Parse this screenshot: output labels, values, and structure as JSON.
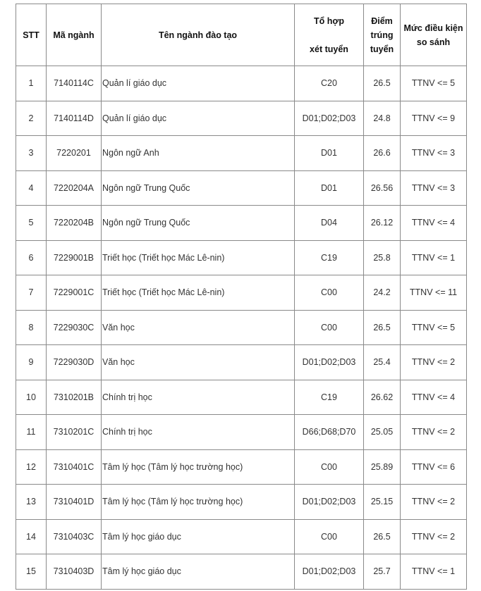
{
  "table": {
    "headers": [
      "STT",
      "Mã ngành",
      "Tên ngành đào tạo",
      "Tổ hợp xét tuyển",
      "Điểm trúng tuyển",
      "Mức điều kiện so sánh"
    ],
    "header_lines": {
      "to_hop": [
        "Tổ hợp",
        "xét tuyển"
      ],
      "diem": [
        "Điểm",
        "trúng",
        "tuyển"
      ],
      "muc": [
        "Mức điều kiện",
        "so sánh"
      ]
    },
    "rows": [
      [
        "1",
        "7140114C",
        "Quản lí giáo dục",
        "C20",
        "26.5",
        "TTNV <= 5"
      ],
      [
        "2",
        "7140114D",
        "Quản lí giáo dục",
        "D01;D02;D03",
        "24.8",
        "TTNV <= 9"
      ],
      [
        "3",
        "7220201",
        "Ngôn ngữ Anh",
        "D01",
        "26.6",
        "TTNV <= 3"
      ],
      [
        "4",
        "7220204A",
        "Ngôn ngữ Trung Quốc",
        "D01",
        "26.56",
        "TTNV <= 3"
      ],
      [
        "5",
        "7220204B",
        "Ngôn ngữ Trung Quốc",
        "D04",
        "26.12",
        "TTNV <= 4"
      ],
      [
        "6",
        "7229001B",
        "Triết học (Triết học Mác Lê-nin)",
        "C19",
        "25.8",
        "TTNV <= 1"
      ],
      [
        "7",
        "7229001C",
        "Triết học (Triết học Mác Lê-nin)",
        "C00",
        "24.2",
        "TTNV <= 11"
      ],
      [
        "8",
        "7229030C",
        "Văn học",
        "C00",
        "26.5",
        "TTNV <= 5"
      ],
      [
        "9",
        "7229030D",
        "Văn học",
        "D01;D02;D03",
        "25.4",
        "TTNV <= 2"
      ],
      [
        "10",
        "7310201B",
        "Chính trị học",
        "C19",
        "26.62",
        "TTNV <= 4"
      ],
      [
        "11",
        "7310201C",
        "Chính trị học",
        "D66;D68;D70",
        "25.05",
        "TTNV <= 2"
      ],
      [
        "12",
        "7310401C",
        "Tâm lý học (Tâm lý học trường học)",
        "C00",
        "25.89",
        "TTNV <= 6"
      ],
      [
        "13",
        "7310401D",
        "Tâm lý học (Tâm lý học trường học)",
        "D01;D02;D03",
        "25.15",
        "TTNV <= 2"
      ],
      [
        "14",
        "7310403C",
        "Tâm lý học giáo dục",
        "C00",
        "26.5",
        "TTNV <= 2"
      ],
      [
        "15",
        "7310403D",
        "Tâm lý học giáo dục",
        "D01;D02;D03",
        "25.7",
        "TTNV <= 1"
      ]
    ]
  }
}
